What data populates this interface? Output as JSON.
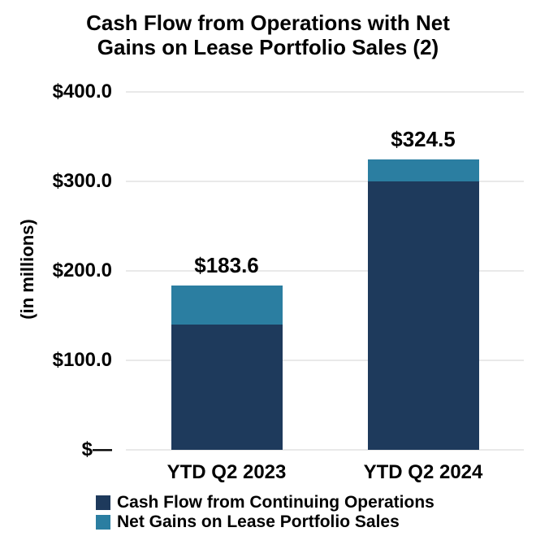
{
  "header": {
    "title_lines": [
      "Cash Flow from Operations with Net",
      "Gains on Lease Portfolio Sales (2)"
    ]
  },
  "colors": {
    "navy": "#1e3a5c",
    "teal": "#2b7ea1",
    "gridline": "#e9e9e9",
    "text": "#000000",
    "background": "#ffffff"
  },
  "chart_data": {
    "type": "bar",
    "stacked": true,
    "title": "Cash Flow from Operations with Net Gains on Lease Portfolio Sales (2)",
    "ylabel": "(in millions)",
    "xlabel": "",
    "categories": [
      "YTD Q2 2023",
      "YTD Q2 2024"
    ],
    "series": [
      {
        "name": "Cash Flow from Continuing Operations",
        "color_key": "navy",
        "values": [
          139.6,
          300.0
        ]
      },
      {
        "name": "Net Gains on Lease Portfolio Sales",
        "color_key": "teal",
        "values": [
          44.0,
          24.5
        ]
      }
    ],
    "totals": [
      183.6,
      324.5
    ],
    "total_labels": [
      "$183.6",
      "$324.5"
    ],
    "ytick_values": [
      0,
      100,
      200,
      300,
      400
    ],
    "ytick_labels": [
      "$—",
      "$100.0",
      "$200.0",
      "$300.0",
      "$400.0"
    ],
    "ylim": [
      0,
      400
    ],
    "grid": true,
    "legend_position": "bottom-left"
  },
  "legend": {
    "items": [
      {
        "label": "Cash Flow from Continuing Operations",
        "color_key": "navy"
      },
      {
        "label": "Net Gains on Lease Portfolio Sales",
        "color_key": "teal"
      }
    ]
  }
}
